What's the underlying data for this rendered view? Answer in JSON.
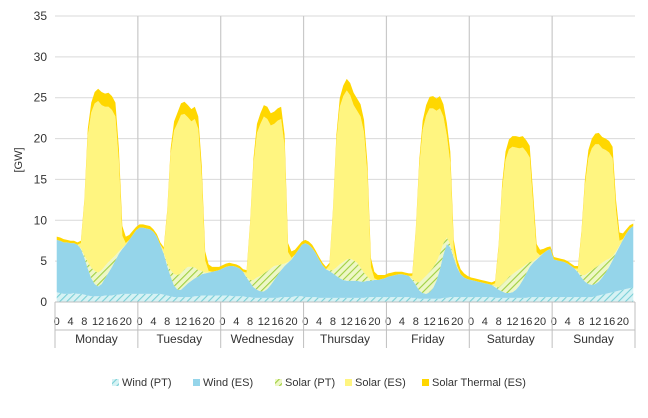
{
  "chart_data": {
    "type": "area",
    "stacked": true,
    "ylabel": "[GW]",
    "ylim": [
      0,
      35
    ],
    "yticks": [
      0,
      5,
      10,
      15,
      20,
      25,
      30,
      35
    ],
    "grid": true,
    "legend_position": "bottom",
    "days": [
      "Monday",
      "Tuesday",
      "Wednesday",
      "Thursday",
      "Friday",
      "Saturday",
      "Sunday"
    ],
    "hour_tick_labels": [
      "0",
      "4",
      "8",
      "12",
      "16",
      "20"
    ],
    "hours_per_day": 24,
    "series": [
      {
        "name": "Wind (PT)",
        "color": "#9fe1e6",
        "pattern": "hatch",
        "values": [
          [
            1.2,
            1.1,
            1.0,
            1.0,
            1.0,
            1.1,
            1.0,
            1.0,
            0.9,
            0.8,
            0.7,
            0.7,
            0.7,
            0.7,
            0.8,
            0.8,
            0.8,
            0.9,
            0.9,
            1.0,
            1.0,
            1.0,
            1.0,
            1.0
          ],
          [
            1.0,
            1.0,
            1.0,
            1.0,
            1.0,
            1.0,
            1.0,
            0.9,
            0.8,
            0.7,
            0.6,
            0.6,
            0.6,
            0.6,
            0.6,
            0.6,
            0.7,
            0.7,
            0.8,
            0.8,
            0.8,
            0.8,
            0.8,
            0.8
          ],
          [
            0.8,
            0.8,
            0.8,
            0.7,
            0.7,
            0.7,
            0.7,
            0.6,
            0.6,
            0.5,
            0.5,
            0.5,
            0.5,
            0.5,
            0.5,
            0.5,
            0.5,
            0.6,
            0.6,
            0.6,
            0.6,
            0.7,
            0.7,
            0.7
          ],
          [
            0.6,
            0.6,
            0.6,
            0.6,
            0.5,
            0.5,
            0.5,
            0.5,
            0.5,
            0.5,
            0.5,
            0.5,
            0.5,
            0.5,
            0.5,
            0.5,
            0.5,
            0.5,
            0.6,
            0.6,
            0.6,
            0.6,
            0.6,
            0.6
          ],
          [
            0.6,
            0.6,
            0.6,
            0.6,
            0.6,
            0.6,
            0.6,
            0.5,
            0.5,
            0.4,
            0.4,
            0.4,
            0.4,
            0.4,
            0.4,
            0.4,
            0.5,
            0.5,
            0.6,
            0.6,
            0.6,
            0.6,
            0.6,
            0.6
          ],
          [
            0.6,
            0.6,
            0.6,
            0.6,
            0.6,
            0.6,
            0.6,
            0.5,
            0.5,
            0.5,
            0.5,
            0.5,
            0.5,
            0.5,
            0.5,
            0.5,
            0.5,
            0.6,
            0.6,
            0.6,
            0.6,
            0.6,
            0.6,
            0.6
          ],
          [
            0.6,
            0.6,
            0.6,
            0.6,
            0.6,
            0.6,
            0.6,
            0.6,
            0.6,
            0.6,
            0.6,
            0.6,
            0.7,
            0.8,
            0.9,
            1.0,
            1.1,
            1.2,
            1.3,
            1.4,
            1.5,
            1.6,
            1.7,
            1.8
          ]
        ]
      },
      {
        "name": "Wind (ES)",
        "color": "#95d5ea",
        "values": [
          [
            6.4,
            6.4,
            6.3,
            6.3,
            6.2,
            6.1,
            6.0,
            5.5,
            4.5,
            3.3,
            2.2,
            1.5,
            1.2,
            1.5,
            2.1,
            2.8,
            3.5,
            4.2,
            5.0,
            5.5,
            6.0,
            6.6,
            7.2,
            7.8
          ],
          [
            8.1,
            8.1,
            8.0,
            7.9,
            7.6,
            7.0,
            6.0,
            5.0,
            3.6,
            2.4,
            1.4,
            0.9,
            0.9,
            1.3,
            1.7,
            2.0,
            2.2,
            2.4,
            2.6,
            2.7,
            2.8,
            2.9,
            3.0,
            3.1
          ],
          [
            3.3,
            3.5,
            3.6,
            3.7,
            3.6,
            3.4,
            3.0,
            2.4,
            1.8,
            1.3,
            1.0,
            0.8,
            0.8,
            1.1,
            1.6,
            2.2,
            2.8,
            3.3,
            3.8,
            4.2,
            4.6,
            5.1,
            5.7,
            6.3
          ],
          [
            6.6,
            6.4,
            6.0,
            5.4,
            4.7,
            4.0,
            3.5,
            3.3,
            3.0,
            2.7,
            2.4,
            2.2,
            2.1,
            2.1,
            2.1,
            2.1,
            2.0,
            2.0,
            2.0,
            2.0,
            2.1,
            2.1,
            2.2,
            2.3
          ],
          [
            2.5,
            2.6,
            2.7,
            2.8,
            2.8,
            2.7,
            2.6,
            2.2,
            1.6,
            1.0,
            0.7,
            0.6,
            0.8,
            1.3,
            2.2,
            3.6,
            5.3,
            6.6,
            6.1,
            4.8,
            3.6,
            2.8,
            2.4,
            2.2
          ],
          [
            2.1,
            2.0,
            1.9,
            1.8,
            1.7,
            1.6,
            1.5,
            1.3,
            1.0,
            0.8,
            0.6,
            0.6,
            0.7,
            1.0,
            1.5,
            2.2,
            3.0,
            3.7,
            4.2,
            4.6,
            5.0,
            5.4,
            5.7,
            5.9
          ],
          [
            4.6,
            4.5,
            4.4,
            4.3,
            4.1,
            3.8,
            3.5,
            3.0,
            2.4,
            1.9,
            1.6,
            1.5,
            1.5,
            1.7,
            2.1,
            2.6,
            3.2,
            3.9,
            4.7,
            5.4,
            6.1,
            6.8,
            7.3,
            7.5
          ]
        ]
      },
      {
        "name": "Solar (PT)",
        "color": "#c6e68a",
        "pattern": "hatch",
        "values": [
          [
            0,
            0,
            0,
            0,
            0,
            0,
            0,
            0.1,
            0.3,
            0.8,
            1.3,
            1.6,
            1.7,
            1.7,
            1.5,
            1.3,
            1.0,
            0.6,
            0.3,
            0.1,
            0,
            0,
            0,
            0
          ],
          [
            0,
            0,
            0,
            0,
            0,
            0,
            0,
            0.1,
            0.3,
            0.8,
            1.4,
            1.8,
            2.0,
            2.1,
            2.0,
            1.7,
            1.3,
            0.8,
            0.4,
            0.1,
            0,
            0,
            0,
            0
          ],
          [
            0,
            0,
            0,
            0,
            0,
            0,
            0,
            0.1,
            0.3,
            0.9,
            1.5,
            1.9,
            2.2,
            2.2,
            2.0,
            1.7,
            1.2,
            0.7,
            0.3,
            0.1,
            0,
            0,
            0,
            0
          ],
          [
            0,
            0,
            0,
            0,
            0,
            0,
            0,
            0.1,
            0.4,
            1.0,
            1.7,
            2.2,
            2.6,
            2.7,
            2.5,
            2.2,
            1.7,
            1.1,
            0.5,
            0.1,
            0,
            0,
            0,
            0
          ],
          [
            0,
            0,
            0,
            0,
            0,
            0,
            0,
            0.1,
            0.4,
            1.0,
            1.7,
            2.2,
            2.5,
            2.5,
            2.3,
            1.9,
            1.4,
            0.8,
            0.3,
            0.1,
            0,
            0,
            0,
            0
          ],
          [
            0,
            0,
            0,
            0,
            0,
            0,
            0,
            0.1,
            0.3,
            0.9,
            1.5,
            2.0,
            2.2,
            2.2,
            2.0,
            1.6,
            1.1,
            0.6,
            0.2,
            0.1,
            0,
            0,
            0,
            0
          ],
          [
            0,
            0,
            0,
            0,
            0,
            0,
            0,
            0.1,
            0.3,
            0.8,
            1.4,
            1.8,
            2.0,
            2.0,
            1.8,
            1.5,
            1.0,
            0.5,
            0.2,
            0.1,
            0,
            0,
            0,
            0
          ]
        ]
      },
      {
        "name": "Solar (ES)",
        "color": "#fff580",
        "values": [
          [
            0,
            0,
            0,
            0,
            0,
            0,
            0,
            0.6,
            6.4,
            15.5,
            19.0,
            20.5,
            21.0,
            20.2,
            19.5,
            19.0,
            18.2,
            17.0,
            11.0,
            1.5,
            0.2,
            0,
            0,
            0
          ],
          [
            0,
            0,
            0,
            0,
            0,
            0,
            0,
            0.4,
            6.1,
            14.2,
            17.6,
            18.6,
            19.4,
            19.0,
            18.3,
            17.8,
            18.2,
            17.3,
            11.5,
            1.5,
            0.2,
            0,
            0,
            0
          ],
          [
            0,
            0,
            0,
            0,
            0,
            0,
            0,
            0.5,
            6.6,
            14.2,
            17.7,
            18.6,
            19.2,
            18.6,
            17.5,
            17.4,
            17.7,
            17.8,
            14.4,
            1.2,
            0.2,
            0,
            0,
            0
          ],
          [
            0,
            0,
            0,
            0,
            0,
            0,
            0,
            0.6,
            7.0,
            15.5,
            19.3,
            20.3,
            20.7,
            20.0,
            19.0,
            18.6,
            18.5,
            17.2,
            12.5,
            1.6,
            0.2,
            0,
            0,
            0
          ],
          [
            0,
            0,
            0,
            0,
            0,
            0,
            0,
            0.4,
            6.0,
            14.2,
            18.3,
            19.6,
            20.0,
            19.5,
            18.5,
            17.8,
            15.5,
            12.5,
            10.0,
            1.0,
            0.2,
            0,
            0,
            0
          ],
          [
            0,
            0,
            0,
            0,
            0,
            0,
            0,
            0.4,
            4.8,
            11.5,
            14.8,
            15.6,
            15.6,
            15.2,
            14.8,
            14.6,
            13.8,
            12.8,
            7.0,
            0.8,
            0.1,
            0,
            0,
            0
          ],
          [
            0,
            0,
            0,
            0,
            0,
            0,
            0,
            0.4,
            5.0,
            11.0,
            14.0,
            14.9,
            15.1,
            14.8,
            14.0,
            13.5,
            13.0,
            12.0,
            5.0,
            0.6,
            0.1,
            0,
            0,
            0
          ]
        ]
      },
      {
        "name": "Solar Thermal (ES)",
        "color": "#ffd700",
        "values": [
          [
            0.4,
            0.4,
            0.4,
            0.3,
            0.3,
            0.3,
            0.3,
            0.3,
            0.4,
            0.8,
            1.2,
            1.4,
            1.5,
            1.6,
            1.6,
            1.7,
            1.7,
            1.7,
            1.6,
            1.2,
            0.8,
            0.6,
            0.5,
            0.4
          ],
          [
            0.4,
            0.4,
            0.4,
            0.4,
            0.3,
            0.3,
            0.3,
            0.3,
            0.4,
            0.7,
            1.1,
            1.3,
            1.4,
            1.5,
            1.5,
            1.5,
            1.5,
            1.5,
            1.4,
            1.1,
            0.8,
            0.6,
            0.5,
            0.4
          ],
          [
            0.4,
            0.4,
            0.4,
            0.3,
            0.3,
            0.3,
            0.3,
            0.3,
            0.4,
            0.7,
            1.1,
            1.3,
            1.4,
            1.5,
            1.5,
            1.5,
            1.5,
            1.5,
            1.4,
            1.1,
            0.8,
            0.6,
            0.5,
            0.4
          ],
          [
            0.4,
            0.4,
            0.4,
            0.3,
            0.3,
            0.3,
            0.3,
            0.3,
            0.4,
            0.7,
            1.1,
            1.3,
            1.4,
            1.5,
            1.5,
            1.5,
            1.5,
            1.5,
            1.4,
            1.1,
            0.8,
            0.6,
            0.5,
            0.4
          ],
          [
            0.4,
            0.4,
            0.4,
            0.3,
            0.3,
            0.3,
            0.3,
            0.3,
            0.4,
            0.7,
            1.1,
            1.3,
            1.4,
            1.5,
            1.5,
            1.5,
            1.5,
            1.5,
            1.4,
            1.1,
            0.8,
            0.6,
            0.5,
            0.4
          ],
          [
            0.3,
            0.3,
            0.3,
            0.3,
            0.3,
            0.3,
            0.3,
            0.3,
            0.4,
            0.7,
            1.0,
            1.2,
            1.3,
            1.4,
            1.4,
            1.4,
            1.4,
            1.4,
            1.3,
            1.0,
            0.7,
            0.5,
            0.4,
            0.3
          ],
          [
            0.3,
            0.3,
            0.3,
            0.3,
            0.3,
            0.3,
            0.3,
            0.3,
            0.4,
            0.7,
            1.0,
            1.2,
            1.3,
            1.4,
            1.4,
            1.4,
            1.4,
            1.4,
            1.3,
            1.0,
            0.7,
            0.5,
            0.4,
            0.3
          ]
        ]
      }
    ]
  }
}
